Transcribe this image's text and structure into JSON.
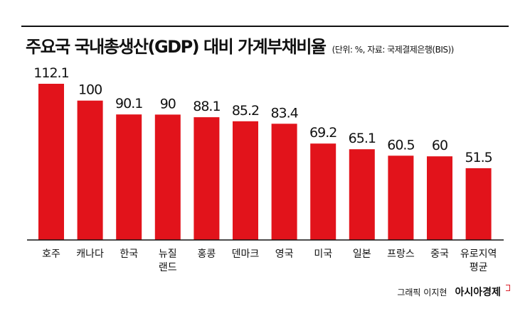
{
  "header": {
    "title": "주요국 국내총생산(GDP) 대비 가계부채비율",
    "subtitle": "(단위: %, 자료: 국제결제은행(BIS))"
  },
  "chart_data": {
    "type": "bar",
    "title": "주요국 국내총생산(GDP) 대비 가계부채비율",
    "subtitle": "(단위: %, 자료: 국제결제은행(BIS))",
    "xlabel": "",
    "ylabel": "",
    "ylim": [
      0,
      112.1
    ],
    "grid": false,
    "legend": "none",
    "bar_color": "#e2131b",
    "categories": [
      "호주",
      "캐나다",
      "한국",
      "뉴질랜드",
      "홍콩",
      "덴마크",
      "영국",
      "미국",
      "일본",
      "프랑스",
      "중국",
      "유로지역 평균"
    ],
    "category_lines": [
      [
        "호주"
      ],
      [
        "캐나다"
      ],
      [
        "한국"
      ],
      [
        "뉴질",
        "랜드"
      ],
      [
        "홍콩"
      ],
      [
        "덴마크"
      ],
      [
        "영국"
      ],
      [
        "미국"
      ],
      [
        "일본"
      ],
      [
        "프랑스"
      ],
      [
        "중국"
      ],
      [
        "유로지역",
        "평균"
      ]
    ],
    "values": [
      112.1,
      100,
      90.1,
      90,
      88.1,
      85.2,
      83.4,
      69.2,
      65.1,
      60.5,
      60,
      51.5
    ],
    "value_labels": [
      "112.1",
      "100",
      "90.1",
      "90",
      "88.1",
      "85.2",
      "83.4",
      "69.2",
      "65.1",
      "60.5",
      "60",
      "51.5"
    ]
  },
  "footer": {
    "credit": "그래픽 이지현",
    "brand": "아시아경제"
  }
}
